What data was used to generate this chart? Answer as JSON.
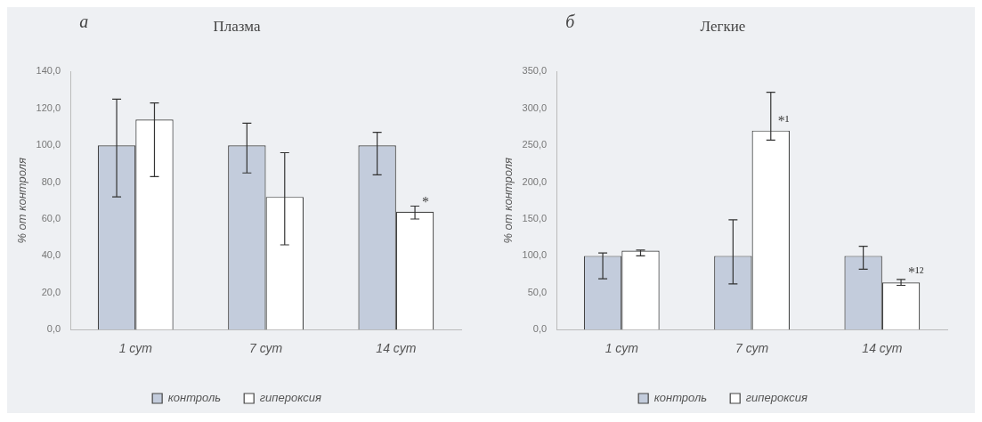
{
  "chart_data": [
    {
      "type": "bar",
      "title": "Плазма",
      "ylabel": "% от контроля",
      "categories": [
        "1 сут",
        "7 сут",
        "14 сут"
      ],
      "series": [
        {
          "name": "контроль",
          "color": "#c3ccdc",
          "values": [
            100,
            100,
            100
          ],
          "errors": [
            [
              72,
              125
            ],
            [
              85,
              112
            ],
            [
              84,
              107
            ]
          ]
        },
        {
          "name": "гипероксия",
          "color": "#ffffff",
          "values": [
            114,
            72,
            64
          ],
          "errors": [
            [
              83,
              123
            ],
            [
              46,
              96
            ],
            [
              60,
              67
            ]
          ]
        }
      ],
      "ylim": [
        0,
        140
      ],
      "yticks": [
        {
          "value": 0,
          "label": "0,0"
        },
        {
          "value": 20,
          "label": "20,0"
        },
        {
          "value": 40,
          "label": "40,0"
        },
        {
          "value": 60,
          "label": "60,0"
        },
        {
          "value": 80,
          "label": "80,0"
        },
        {
          "value": 100,
          "label": "100,0"
        },
        {
          "value": 120,
          "label": "120,0"
        },
        {
          "value": 140,
          "label": "140,0"
        }
      ],
      "annotations": [
        "а",
        {
          "text": "*",
          "x": "14 сут",
          "y": 64
        }
      ],
      "legend": "bottom",
      "grid": false
    },
    {
      "type": "bar",
      "title": "Легкие",
      "ylabel": "% от контроля",
      "categories": [
        "1 сут",
        "7 сут",
        "14 сут"
      ],
      "series": [
        {
          "name": "контроль",
          "color": "#c3ccdc",
          "values": [
            100,
            100,
            100
          ],
          "errors": [
            [
              69,
              104
            ],
            [
              62,
              149
            ],
            [
              82,
              113
            ]
          ]
        },
        {
          "name": "гипероксия",
          "color": "#ffffff",
          "values": [
            107,
            270,
            64
          ],
          "errors": [
            [
              100,
              108
            ],
            [
              257,
              322
            ],
            [
              60,
              68
            ]
          ]
        }
      ],
      "ylim": [
        0,
        350
      ],
      "yticks": [
        {
          "value": 0,
          "label": "0,0"
        },
        {
          "value": 50,
          "label": "50,0"
        },
        {
          "value": 100,
          "label": "100,0"
        },
        {
          "value": 150,
          "label": "150,0"
        },
        {
          "value": 200,
          "label": "200,0"
        },
        {
          "value": 250,
          "label": "250,0"
        },
        {
          "value": 300,
          "label": "300,0"
        },
        {
          "value": 350,
          "label": "350,0"
        }
      ],
      "annotations": [
        "б",
        {
          "text": "*¹",
          "x": "7 сут",
          "y": 270
        },
        {
          "text": "*¹²",
          "x": "14 сут",
          "y": 64
        }
      ],
      "legend": "bottom",
      "grid": false
    }
  ]
}
